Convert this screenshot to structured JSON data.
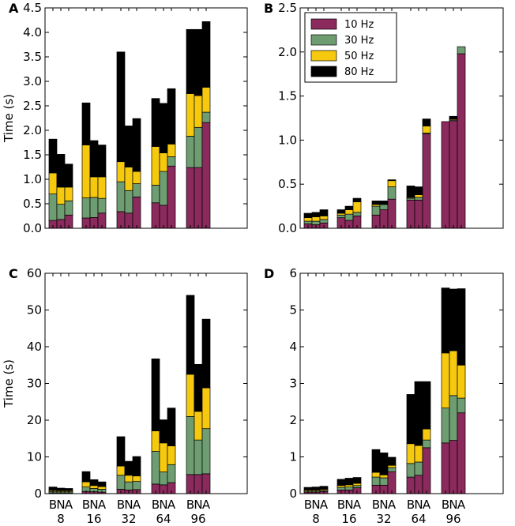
{
  "figure": {
    "series_colors": {
      "10 Hz": "#8b2a5c",
      "30 Hz": "#6e9d72",
      "50 Hz": "#f6c90e",
      "80 Hz": "#000000"
    }
  },
  "chart_data": [
    {
      "type": "bar",
      "stacked": true,
      "panel": "A",
      "ylabel": "Time (s)",
      "ylim": [
        0,
        4.5
      ],
      "yticks": [
        "0.0",
        "0.5",
        "1.0",
        "1.5",
        "2.0",
        "2.5",
        "3.0",
        "3.5",
        "4.0",
        "4.5"
      ],
      "groups": [
        "8",
        "16",
        "32",
        "64",
        "96"
      ],
      "group_member_labels": [
        "B",
        "N",
        "A"
      ],
      "show_group_labels": false,
      "legend": false,
      "series": [
        {
          "name": "10 Hz",
          "values": [
            0.16,
            0.18,
            0.27,
            0.21,
            0.22,
            0.31,
            0.34,
            0.31,
            0.64,
            0.52,
            0.47,
            1.27,
            1.24,
            1.24,
            2.16
          ]
        },
        {
          "name": "30 Hz",
          "values": [
            0.54,
            0.31,
            0.29,
            0.41,
            0.41,
            0.3,
            0.61,
            0.46,
            0.27,
            0.36,
            0.69,
            0.19,
            0.64,
            0.82,
            0.21
          ]
        },
        {
          "name": "50 Hz",
          "values": [
            0.43,
            0.35,
            0.28,
            1.08,
            0.42,
            0.44,
            0.41,
            0.48,
            0.25,
            0.79,
            0.38,
            0.26,
            0.87,
            0.65,
            0.51
          ]
        },
        {
          "name": "80 Hz",
          "values": [
            0.69,
            0.67,
            0.47,
            0.86,
            0.74,
            0.65,
            2.24,
            0.84,
            1.08,
            0.98,
            1.01,
            1.13,
            1.31,
            1.35,
            1.34
          ]
        }
      ]
    },
    {
      "type": "bar",
      "stacked": true,
      "panel": "B",
      "ylabel": "",
      "ylim": [
        0,
        2.5
      ],
      "yticks": [
        "0.0",
        "0.5",
        "1.0",
        "1.5",
        "2.0",
        "2.5"
      ],
      "groups": [
        "8",
        "16",
        "32",
        "64",
        "96"
      ],
      "group_member_labels": [
        "B",
        "N",
        "A"
      ],
      "show_group_labels": false,
      "legend": true,
      "legend_position": "top-left",
      "series": [
        {
          "name": "10 Hz",
          "values": [
            0.05,
            0.04,
            0.06,
            0.12,
            0.09,
            0.14,
            0.15,
            0.21,
            0.33,
            0.32,
            0.32,
            1.07,
            1.21,
            1.22,
            1.98
          ]
        },
        {
          "name": "30 Hz",
          "values": [
            0.03,
            0.04,
            0.04,
            0.03,
            0.07,
            0.04,
            0.1,
            0.06,
            0.14,
            0.02,
            0.03,
            0.01,
            0.0,
            0.01,
            0.08
          ]
        },
        {
          "name": "50 Hz",
          "values": [
            0.04,
            0.05,
            0.04,
            0.02,
            0.05,
            0.12,
            0.02,
            0.0,
            0.07,
            0.01,
            0.03,
            0.08,
            0.0,
            0.01,
            0.0
          ]
        },
        {
          "name": "80 Hz",
          "values": [
            0.05,
            0.05,
            0.07,
            0.04,
            0.04,
            0.04,
            0.04,
            0.04,
            0.01,
            0.13,
            0.09,
            0.08,
            0.0,
            0.03,
            0.0
          ]
        }
      ]
    },
    {
      "type": "bar",
      "stacked": true,
      "panel": "C",
      "ylabel": "Time (s)",
      "ylim": [
        0,
        60
      ],
      "yticks": [
        "0",
        "10",
        "20",
        "30",
        "40",
        "50",
        "60"
      ],
      "groups": [
        "8",
        "16",
        "32",
        "64",
        "96"
      ],
      "group_member_labels": [
        "B",
        "N",
        "A"
      ],
      "show_group_labels": true,
      "legend": false,
      "series": [
        {
          "name": "10 Hz",
          "values": [
            0.2,
            0.2,
            0.2,
            0.6,
            0.5,
            0.4,
            1.2,
            1.0,
            1.1,
            2.6,
            2.4,
            3.0,
            5.2,
            5.2,
            5.4
          ]
        },
        {
          "name": "30 Hz",
          "values": [
            0.4,
            0.3,
            0.3,
            1.2,
            0.9,
            0.8,
            3.8,
            2.2,
            2.2,
            8.9,
            3.5,
            4.9,
            15.8,
            9.4,
            12.3
          ]
        },
        {
          "name": "50 Hz",
          "values": [
            0.3,
            0.3,
            0.3,
            1.4,
            0.8,
            0.7,
            2.5,
            1.8,
            1.5,
            5.6,
            7.9,
            5.1,
            11.5,
            7.8,
            11.1
          ]
        },
        {
          "name": "80 Hz",
          "values": [
            0.9,
            0.7,
            0.6,
            2.8,
            1.6,
            1.3,
            8.0,
            3.8,
            5.3,
            19.6,
            6.3,
            10.3,
            21.5,
            12.8,
            18.7
          ]
        }
      ]
    },
    {
      "type": "bar",
      "stacked": true,
      "panel": "D",
      "ylabel": "",
      "ylim": [
        0,
        6
      ],
      "yticks": [
        "0",
        "1",
        "2",
        "3",
        "4",
        "5",
        "6"
      ],
      "groups": [
        "8",
        "16",
        "32",
        "64",
        "96"
      ],
      "group_member_labels": [
        "B",
        "N",
        "A"
      ],
      "show_group_labels": true,
      "legend": false,
      "series": [
        {
          "name": "10 Hz",
          "values": [
            0.04,
            0.04,
            0.06,
            0.1,
            0.1,
            0.16,
            0.23,
            0.23,
            0.6,
            0.45,
            0.5,
            1.25,
            1.38,
            1.45,
            2.2
          ]
        },
        {
          "name": "30 Hz",
          "values": [
            0.03,
            0.03,
            0.03,
            0.07,
            0.08,
            0.06,
            0.22,
            0.2,
            0.11,
            0.37,
            0.36,
            0.21,
            0.95,
            1.22,
            0.4
          ]
        },
        {
          "name": "50 Hz",
          "values": [
            0.03,
            0.03,
            0.03,
            0.05,
            0.06,
            0.06,
            0.13,
            0.08,
            0.06,
            0.54,
            0.45,
            0.3,
            1.5,
            1.22,
            0.9
          ]
        },
        {
          "name": "80 Hz",
          "values": [
            0.07,
            0.08,
            0.08,
            0.17,
            0.18,
            0.16,
            0.62,
            0.6,
            0.22,
            1.34,
            1.74,
            1.29,
            1.77,
            1.68,
            2.08
          ]
        }
      ]
    }
  ]
}
